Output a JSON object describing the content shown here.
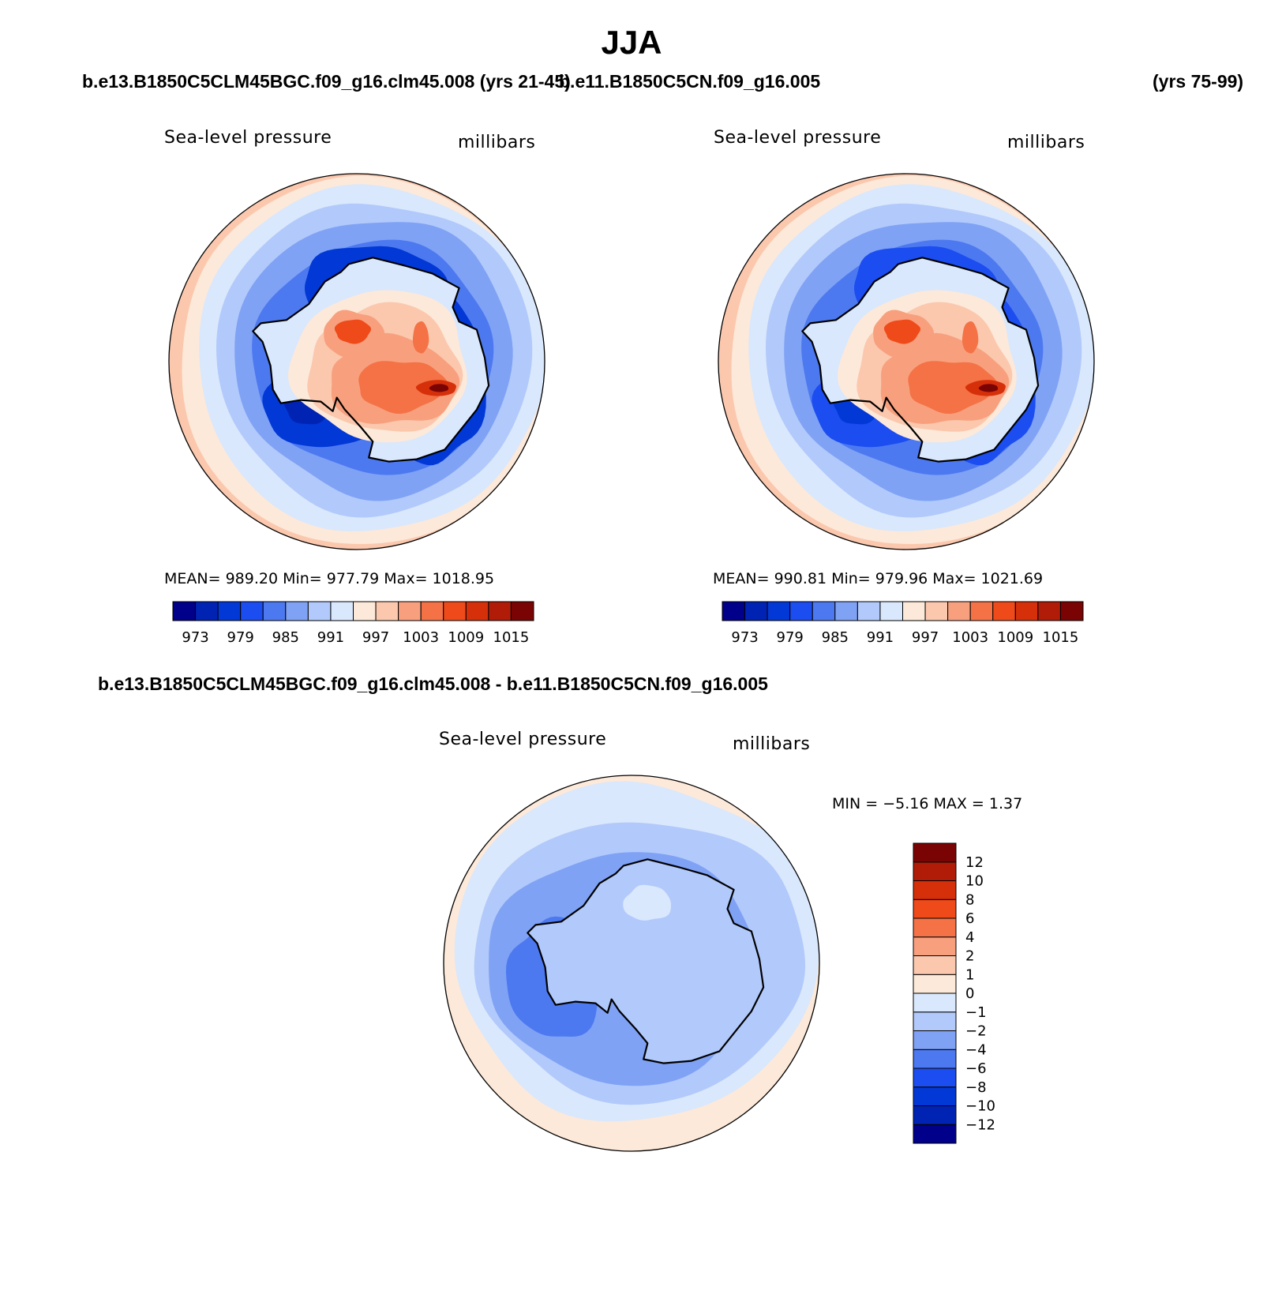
{
  "title": "JJA",
  "header": {
    "case1": "b.e13.B1850C5CLM45BGC.f09_g16.clm45.008 (yrs 21-45)",
    "case2": "b.e11.B1850C5CN.f09_g16.005",
    "case2_years": "(yrs 75-99)",
    "diff_title": "b.e13.B1850C5CLM45BGC.f09_g16.clm45.008 - b.e11.B1850C5CN.f09_g16.005"
  },
  "chart_data": [
    {
      "type": "heatmap",
      "projection": "south polar stereographic",
      "variable": "Sea-level pressure",
      "units": "millibars",
      "stats": {
        "mean": "989.20",
        "min": "977.79",
        "max": "1018.95"
      },
      "stats_text": "MEAN= 989.20   Min= 977.79   Max= 1018.95",
      "levels": [
        973,
        976,
        979,
        982,
        985,
        988,
        991,
        994,
        997,
        1000,
        1003,
        1006,
        1009,
        1012,
        1015
      ],
      "tick_labels": [
        "973",
        "979",
        "985",
        "991",
        "997",
        "1003",
        "1009",
        "1015"
      ],
      "colors": [
        "#00008b",
        "#0023b4",
        "#0238d5",
        "#1b4df0",
        "#4d79f0",
        "#7fa2f5",
        "#b2c9fb",
        "#d9e8fc",
        "#fde9d9",
        "#fbc8ae",
        "#f8a07e",
        "#f47246",
        "#ef4a1a",
        "#d6300a",
        "#b01c08",
        "#7a0403"
      ],
      "antarctica_anomaly_peak": 1018.95,
      "ocean_low": 977.79
    },
    {
      "type": "heatmap",
      "projection": "south polar stereographic",
      "variable": "Sea-level pressure",
      "units": "millibars",
      "stats": {
        "mean": "990.81",
        "min": "979.96",
        "max": "1021.69"
      },
      "stats_text": "MEAN= 990.81   Min= 979.96   Max= 1021.69",
      "levels": [
        973,
        976,
        979,
        982,
        985,
        988,
        991,
        994,
        997,
        1000,
        1003,
        1006,
        1009,
        1012,
        1015
      ],
      "tick_labels": [
        "973",
        "979",
        "985",
        "991",
        "997",
        "1003",
        "1009",
        "1015"
      ],
      "colors": [
        "#00008b",
        "#0023b4",
        "#0238d5",
        "#1b4df0",
        "#4d79f0",
        "#7fa2f5",
        "#b2c9fb",
        "#d9e8fc",
        "#fde9d9",
        "#fbc8ae",
        "#f8a07e",
        "#f47246",
        "#ef4a1a",
        "#d6300a",
        "#b01c08",
        "#7a0403"
      ],
      "antarctica_anomaly_peak": 1021.69,
      "ocean_low": 979.96
    },
    {
      "type": "heatmap",
      "projection": "south polar stereographic",
      "variable": "Sea-level pressure",
      "units": "millibars",
      "stats": {
        "min": "-5.16",
        "max": "1.37"
      },
      "stats_text": "MIN =   −5.16  MAX =    1.37",
      "levels": [
        -12,
        -10,
        -8,
        -6,
        -4,
        -2,
        -1,
        0,
        1,
        2,
        4,
        6,
        8,
        10,
        12
      ],
      "tick_labels": [
        "12",
        "10",
        "8",
        "6",
        "4",
        "2",
        "1",
        "0",
        "−1",
        "−2",
        "−4",
        "−6",
        "−8",
        "−10",
        "−12"
      ],
      "colors": [
        "#00008b",
        "#0023b4",
        "#0238d5",
        "#1b4df0",
        "#4d79f0",
        "#7fa2f5",
        "#b2c9fb",
        "#d9e8fc",
        "#fde9d9",
        "#fbc8ae",
        "#f8a07e",
        "#f47246",
        "#ef4a1a",
        "#d6300a",
        "#b01c08",
        "#7a0403"
      ],
      "colorbar_orientation": "vertical"
    }
  ]
}
